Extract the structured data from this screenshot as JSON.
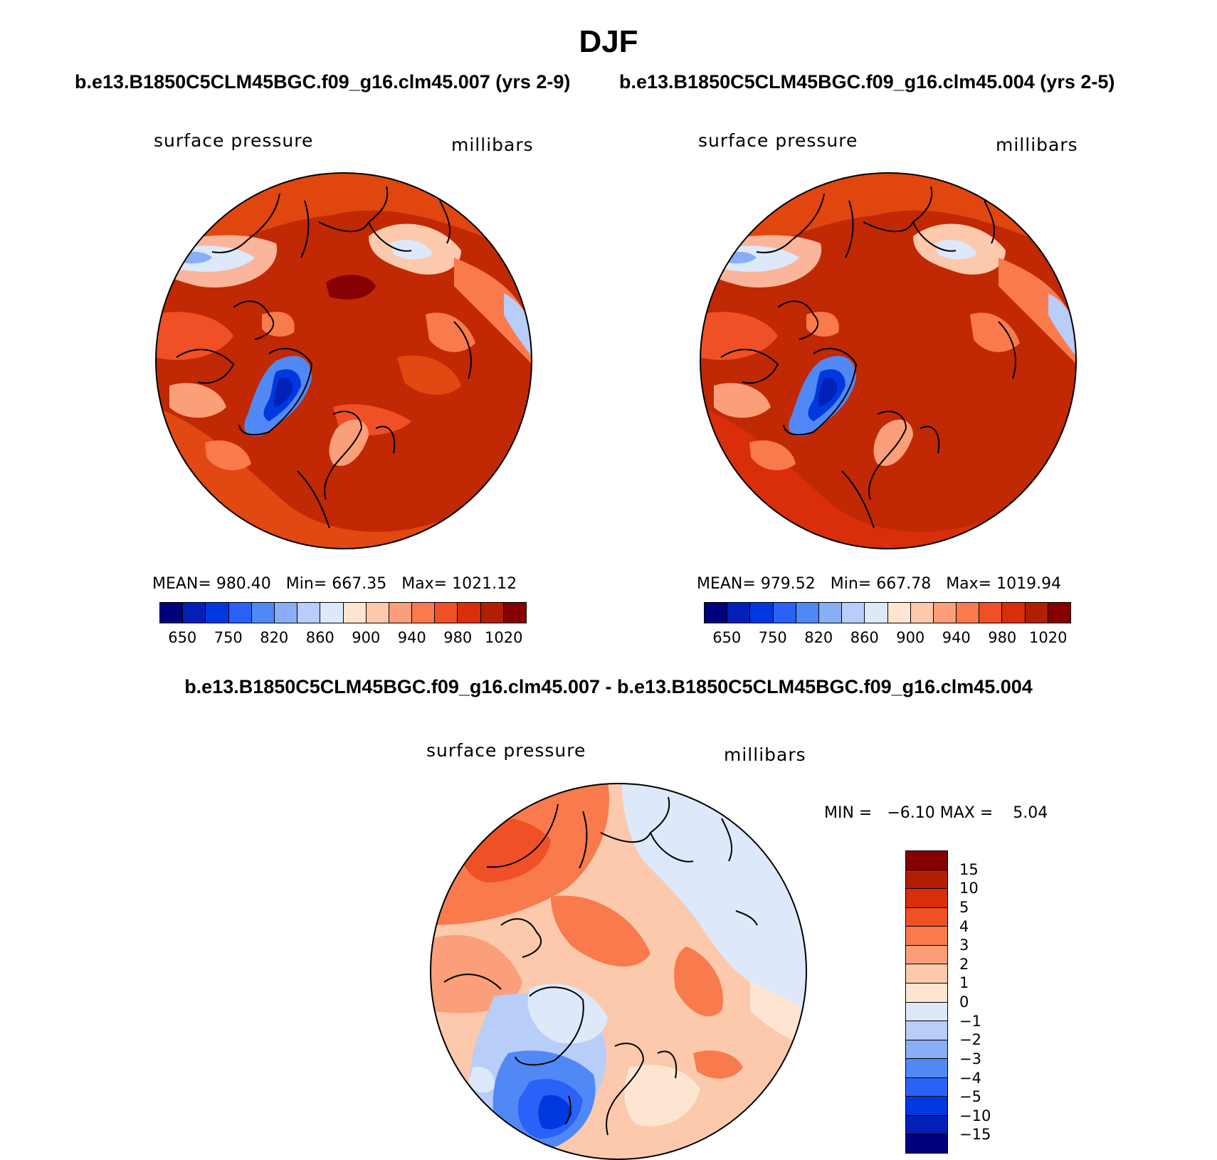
{
  "title": "DJF",
  "panels": [
    {
      "case_title": "b.e13.B1850C5CLM45BGC.f09_g16.clm45.007 (yrs 2-9)",
      "variable": "surface pressure",
      "units": "millibars",
      "stats": "MEAN= 980.40   Min= 667.35   Max= 1021.12",
      "colorbar": {
        "colors": [
          "#00007f",
          "#0020b8",
          "#0038e0",
          "#2a62f7",
          "#5088f5",
          "#8aaef5",
          "#b8cdf7",
          "#dde8fb",
          "#fde5d2",
          "#fcc9ad",
          "#fa9f7a",
          "#f97a4c",
          "#f05025",
          "#d82e0a",
          "#b21e00",
          "#850000"
        ],
        "labels": [
          "650",
          "750",
          "820",
          "860",
          "900",
          "940",
          "980",
          "1020"
        ]
      }
    },
    {
      "case_title": "b.e13.B1850C5CLM45BGC.f09_g16.clm45.004 (yrs 2-5)",
      "variable": "surface pressure",
      "units": "millibars",
      "stats": "MEAN= 979.52   Min= 667.78   Max= 1019.94",
      "colorbar": {
        "colors": [
          "#00007f",
          "#0020b8",
          "#0038e0",
          "#2a62f7",
          "#5088f5",
          "#8aaef5",
          "#b8cdf7",
          "#dde8fb",
          "#fde5d2",
          "#fcc9ad",
          "#fa9f7a",
          "#f97a4c",
          "#f05025",
          "#d82e0a",
          "#b21e00",
          "#850000"
        ],
        "labels": [
          "650",
          "750",
          "820",
          "860",
          "900",
          "940",
          "980",
          "1020"
        ]
      }
    },
    {
      "case_title": "b.e13.B1850C5CLM45BGC.f09_g16.clm45.007 - b.e13.B1850C5CLM45BGC.f09_g16.clm45.004",
      "variable": "surface pressure",
      "units": "millibars",
      "stats": "MIN =   −6.10 MAX =    5.04",
      "colorbar": {
        "colors": [
          "#850000",
          "#b21e00",
          "#d82e0a",
          "#f05025",
          "#f97a4c",
          "#fa9f7a",
          "#fcc9ad",
          "#fde5d2",
          "#dde8fb",
          "#b8cdf7",
          "#8aaef5",
          "#5088f5",
          "#2a62f7",
          "#0038e0",
          "#0020b8",
          "#00007f"
        ],
        "labels": [
          "15",
          "10",
          "5",
          "4",
          "3",
          "2",
          "1",
          "0",
          "−1",
          "−2",
          "−3",
          "−4",
          "−5",
          "−10",
          "−15"
        ]
      }
    }
  ]
}
